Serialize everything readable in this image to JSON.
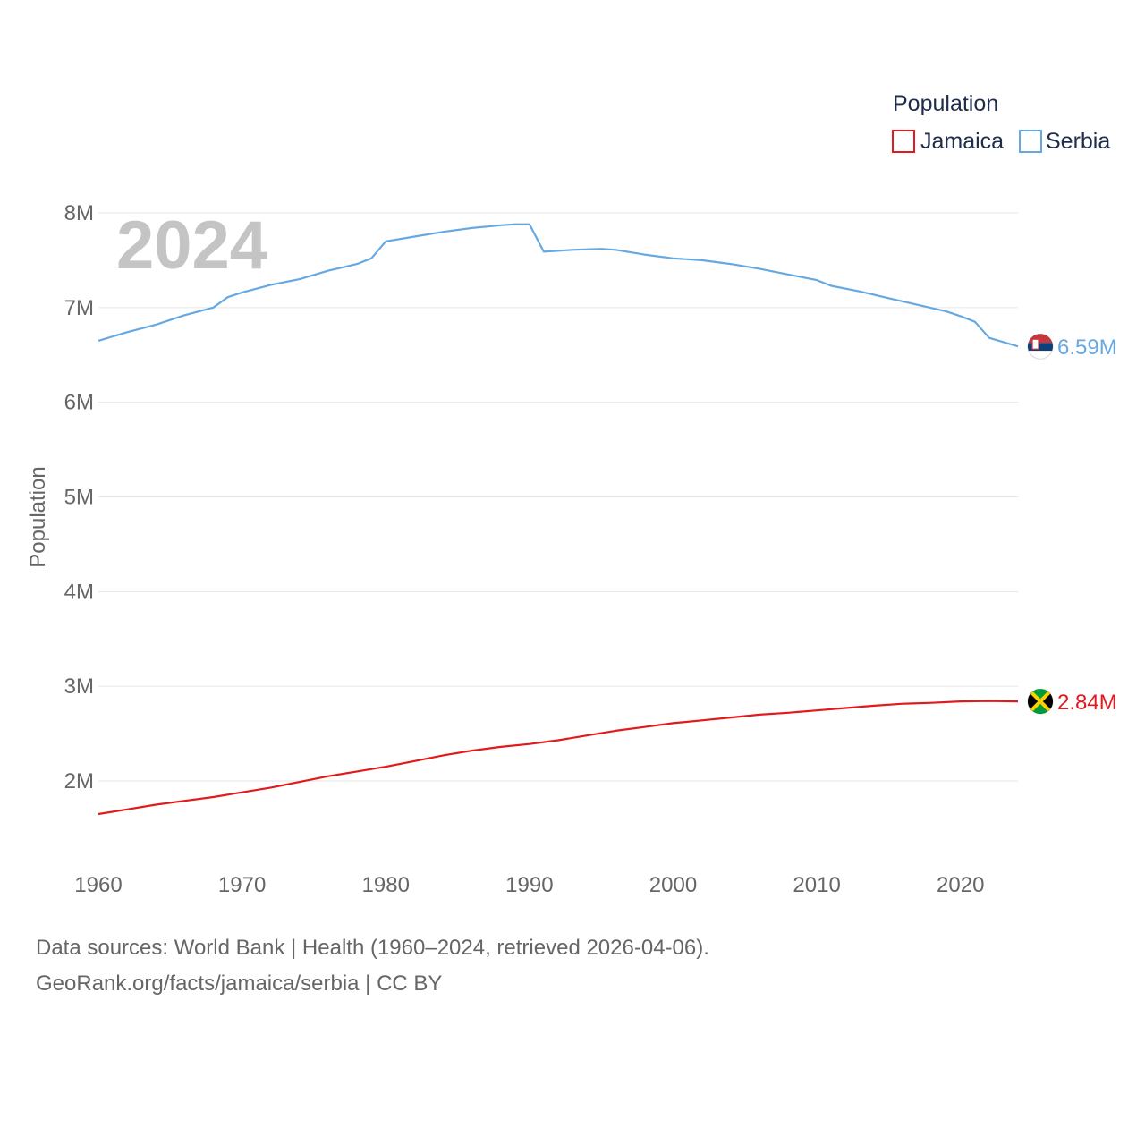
{
  "chart_data": {
    "type": "line",
    "title": "",
    "year_label": "2024",
    "legend_title": "Population",
    "ylabel": "Population",
    "xlabel": "",
    "xlim": [
      1960,
      2024
    ],
    "ylim": [
      1300000,
      8200000
    ],
    "x_ticks": [
      1960,
      1970,
      1980,
      1990,
      2000,
      2010,
      2020
    ],
    "y_ticks": [
      {
        "value": 2000000,
        "label": "2M"
      },
      {
        "value": 3000000,
        "label": "3M"
      },
      {
        "value": 4000000,
        "label": "4M"
      },
      {
        "value": 5000000,
        "label": "5M"
      },
      {
        "value": 6000000,
        "label": "6M"
      },
      {
        "value": 7000000,
        "label": "7M"
      },
      {
        "value": 8000000,
        "label": "8M"
      }
    ],
    "grid": true,
    "legend_position": "top-right",
    "series": [
      {
        "name": "Jamaica",
        "color": "#e31a1c",
        "end_label": "2.84M",
        "flag_icon": "jamaica-flag-icon",
        "points": [
          [
            1960,
            1650000
          ],
          [
            1962,
            1700000
          ],
          [
            1964,
            1750000
          ],
          [
            1966,
            1790000
          ],
          [
            1968,
            1830000
          ],
          [
            1970,
            1880000
          ],
          [
            1972,
            1930000
          ],
          [
            1974,
            1990000
          ],
          [
            1976,
            2050000
          ],
          [
            1978,
            2100000
          ],
          [
            1980,
            2150000
          ],
          [
            1982,
            2210000
          ],
          [
            1984,
            2270000
          ],
          [
            1986,
            2320000
          ],
          [
            1988,
            2360000
          ],
          [
            1990,
            2390000
          ],
          [
            1992,
            2430000
          ],
          [
            1994,
            2480000
          ],
          [
            1996,
            2530000
          ],
          [
            1998,
            2570000
          ],
          [
            2000,
            2610000
          ],
          [
            2002,
            2640000
          ],
          [
            2004,
            2670000
          ],
          [
            2006,
            2700000
          ],
          [
            2008,
            2720000
          ],
          [
            2010,
            2745000
          ],
          [
            2012,
            2770000
          ],
          [
            2014,
            2795000
          ],
          [
            2016,
            2815000
          ],
          [
            2018,
            2825000
          ],
          [
            2020,
            2840000
          ],
          [
            2022,
            2845000
          ],
          [
            2024,
            2840000
          ]
        ]
      },
      {
        "name": "Serbia",
        "color": "#66a9e2",
        "end_label": "6.59M",
        "flag_icon": "serbia-flag-icon",
        "points": [
          [
            1960,
            6650000
          ],
          [
            1962,
            6740000
          ],
          [
            1964,
            6820000
          ],
          [
            1966,
            6920000
          ],
          [
            1968,
            7000000
          ],
          [
            1969,
            7110000
          ],
          [
            1970,
            7160000
          ],
          [
            1972,
            7240000
          ],
          [
            1974,
            7300000
          ],
          [
            1976,
            7390000
          ],
          [
            1978,
            7460000
          ],
          [
            1979,
            7520000
          ],
          [
            1980,
            7700000
          ],
          [
            1982,
            7750000
          ],
          [
            1984,
            7800000
          ],
          [
            1986,
            7840000
          ],
          [
            1988,
            7870000
          ],
          [
            1989,
            7880000
          ],
          [
            1990,
            7880000
          ],
          [
            1991,
            7590000
          ],
          [
            1993,
            7610000
          ],
          [
            1995,
            7620000
          ],
          [
            1996,
            7610000
          ],
          [
            1998,
            7560000
          ],
          [
            2000,
            7520000
          ],
          [
            2002,
            7500000
          ],
          [
            2004,
            7460000
          ],
          [
            2006,
            7410000
          ],
          [
            2008,
            7350000
          ],
          [
            2010,
            7290000
          ],
          [
            2011,
            7230000
          ],
          [
            2013,
            7170000
          ],
          [
            2015,
            7100000
          ],
          [
            2017,
            7030000
          ],
          [
            2019,
            6960000
          ],
          [
            2020,
            6910000
          ],
          [
            2021,
            6850000
          ],
          [
            2022,
            6680000
          ],
          [
            2024,
            6590000
          ]
        ]
      }
    ]
  },
  "footer": {
    "line1": "Data sources: World Bank | Health (1960–2024, retrieved 2026-04-06).",
    "line2": "GeoRank.org/facts/jamaica/serbia | CC BY"
  }
}
